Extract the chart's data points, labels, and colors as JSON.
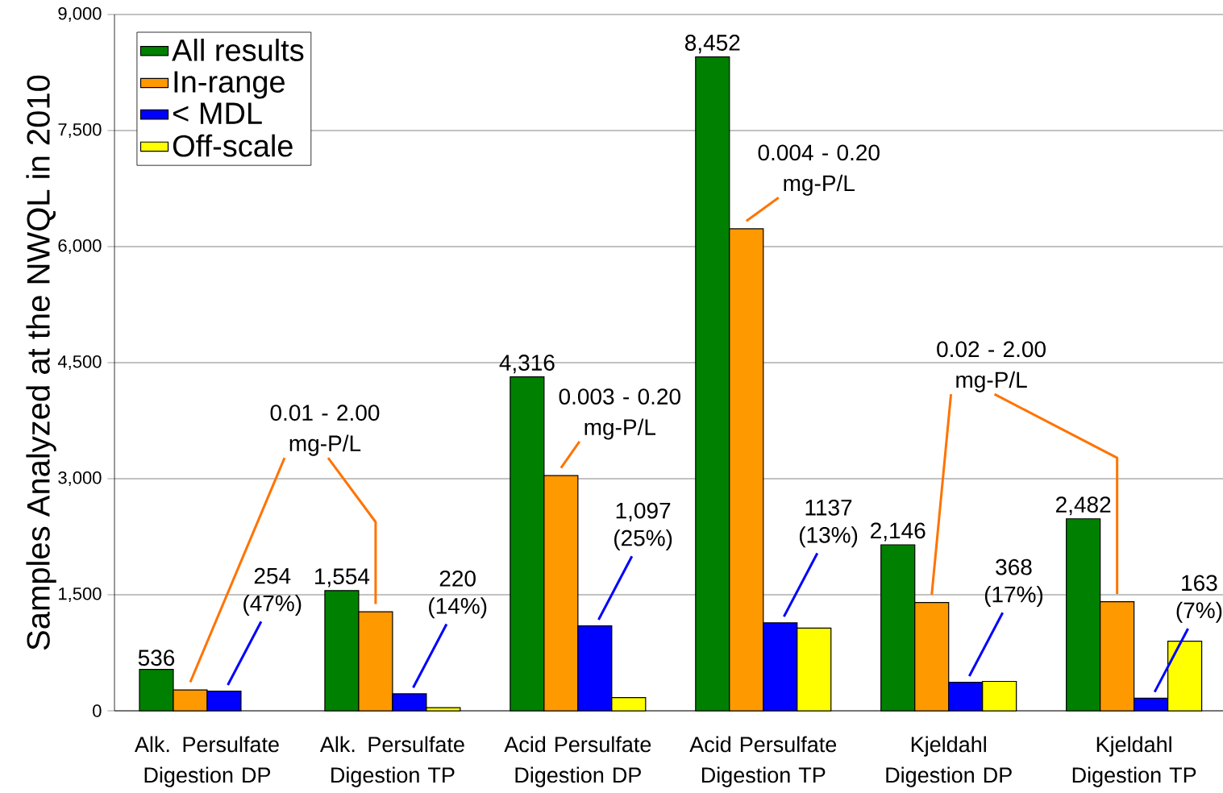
{
  "chart_data": {
    "type": "bar",
    "ylabel": "Samples Analyzed at the NWQL in 2010",
    "categories": [
      "Alk. Persulfate Digestion DP",
      "Alk. Persulfate Digestion TP",
      "Acid Persulfate Digestion DP",
      "Acid Persulfate Digestion TP",
      "Kjeldahl Digestion DP",
      "Kjeldahl Digestion TP"
    ],
    "series": [
      {
        "name": "All results",
        "color": "#008000",
        "values": [
          536,
          1554,
          4316,
          8452,
          2146,
          2482
        ],
        "value_labels": [
          "536",
          "1,554",
          "4,316",
          "8,452",
          "2,146",
          "2,482"
        ]
      },
      {
        "name": "In-range",
        "color": "#ff9900",
        "values": [
          270,
          1280,
          3040,
          6230,
          1400,
          1410
        ]
      },
      {
        "name": "< MDL",
        "color": "#0000ff",
        "values": [
          254,
          220,
          1097,
          1137,
          368,
          163
        ],
        "value_labels": [
          "254 (47%)",
          "220 (14%)",
          "1,097 (25%)",
          "1137 (13%)",
          "368 (17%)",
          "163 (7%)"
        ]
      },
      {
        "name": "Off-scale",
        "color": "#ffff00",
        "values": [
          null,
          40,
          170,
          1070,
          380,
          900
        ]
      }
    ],
    "annotations": [
      "0.01 - 2.00 mg-P/L",
      "0.003 - 0.20 mg-P/L",
      "0.004 - 0.20 mg-P/L",
      "0.02 - 2.00 mg-P/L"
    ],
    "ylim": [
      0,
      9000
    ],
    "yticks": [
      0,
      {
        "value": 1500,
        "label": "1,500"
      },
      {
        "value": 3000,
        "label": "3,000"
      },
      {
        "value": 4500,
        "label": "4,500"
      },
      {
        "value": 6000,
        "label": "6,000"
      },
      {
        "value": 7500,
        "label": "7,500"
      },
      {
        "value": 9000,
        "label": "9,000"
      }
    ],
    "grid": "y",
    "legend": "top left"
  }
}
